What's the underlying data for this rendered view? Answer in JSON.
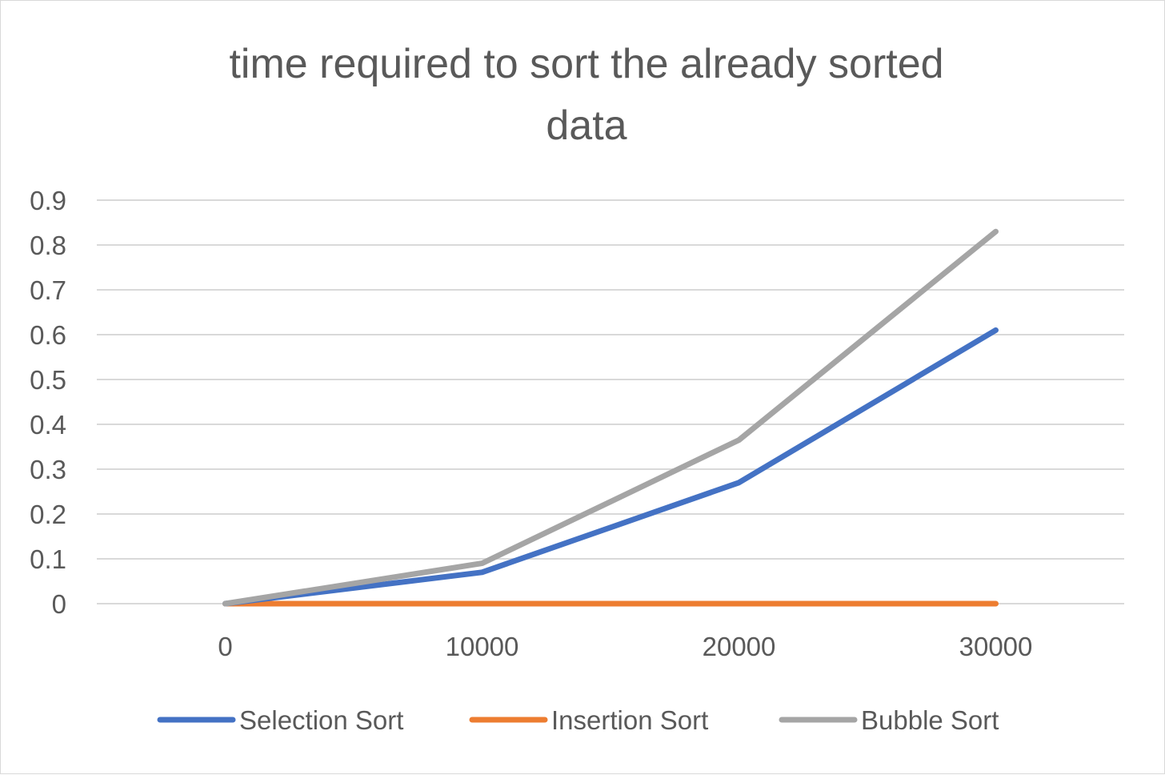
{
  "chart_data": {
    "type": "line",
    "title_lines": [
      "time required to sort the already sorted",
      "data"
    ],
    "xlabel": "",
    "ylabel": "",
    "categories": [
      "0",
      "10000",
      "20000",
      "30000"
    ],
    "ylim": [
      0,
      0.9
    ],
    "yticks": [
      "0",
      "0.1",
      "0.2",
      "0.3",
      "0.4",
      "0.5",
      "0.6",
      "0.7",
      "0.8",
      "0.9"
    ],
    "grid": true,
    "legend_position": "bottom",
    "series": [
      {
        "name": "Selection Sort",
        "color": "#4472C4",
        "values": [
          0,
          0.07,
          0.27,
          0.61
        ]
      },
      {
        "name": "Insertion Sort",
        "color": "#ED7D31",
        "values": [
          0,
          0,
          0,
          0
        ]
      },
      {
        "name": "Bubble Sort",
        "color": "#A5A5A5",
        "values": [
          0,
          0.09,
          0.365,
          0.83
        ]
      }
    ]
  }
}
